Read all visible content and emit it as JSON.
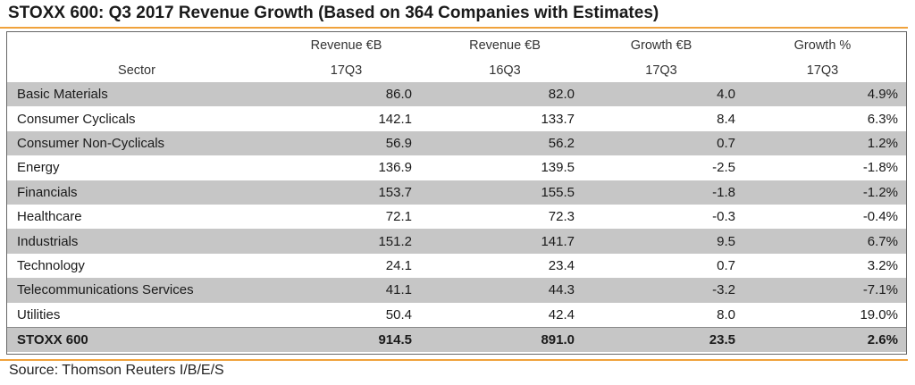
{
  "title": "STOXX 600: Q3 2017 Revenue Growth (Based on 364 Companies with Estimates)",
  "header": {
    "row1": [
      "",
      "Revenue €B",
      "Revenue €B",
      "Growth €B",
      "Growth %"
    ],
    "row2": [
      "Sector",
      "17Q3",
      "16Q3",
      "17Q3",
      "17Q3"
    ]
  },
  "rows": [
    {
      "sector": "Basic Materials",
      "rev17": "86.0",
      "rev16": "82.0",
      "growth_b": "4.0",
      "growth_pct": "4.9%"
    },
    {
      "sector": "Consumer Cyclicals",
      "rev17": "142.1",
      "rev16": "133.7",
      "growth_b": "8.4",
      "growth_pct": "6.3%"
    },
    {
      "sector": "Consumer Non-Cyclicals",
      "rev17": "56.9",
      "rev16": "56.2",
      "growth_b": "0.7",
      "growth_pct": "1.2%"
    },
    {
      "sector": "Energy",
      "rev17": "136.9",
      "rev16": "139.5",
      "growth_b": "-2.5",
      "growth_pct": "-1.8%"
    },
    {
      "sector": "Financials",
      "rev17": "153.7",
      "rev16": "155.5",
      "growth_b": "-1.8",
      "growth_pct": "-1.2%"
    },
    {
      "sector": "Healthcare",
      "rev17": "72.1",
      "rev16": "72.3",
      "growth_b": "-0.3",
      "growth_pct": "-0.4%"
    },
    {
      "sector": "Industrials",
      "rev17": "151.2",
      "rev16": "141.7",
      "growth_b": "9.5",
      "growth_pct": "6.7%"
    },
    {
      "sector": "Technology",
      "rev17": "24.1",
      "rev16": "23.4",
      "growth_b": "0.7",
      "growth_pct": "3.2%"
    },
    {
      "sector": "Telecommunications Services",
      "rev17": "41.1",
      "rev16": "44.3",
      "growth_b": "-3.2",
      "growth_pct": "-7.1%"
    },
    {
      "sector": "Utilities",
      "rev17": "50.4",
      "rev16": "42.4",
      "growth_b": "8.0",
      "growth_pct": "19.0%"
    }
  ],
  "total": {
    "sector": "STOXX 600",
    "rev17": "914.5",
    "rev16": "891.0",
    "growth_b": "23.5",
    "growth_pct": "2.6%"
  },
  "source": "Source: Thomson Reuters I/B/E/S",
  "colors": {
    "accent_rule": "#f0a23c",
    "row_shade": "#c6c6c6"
  }
}
